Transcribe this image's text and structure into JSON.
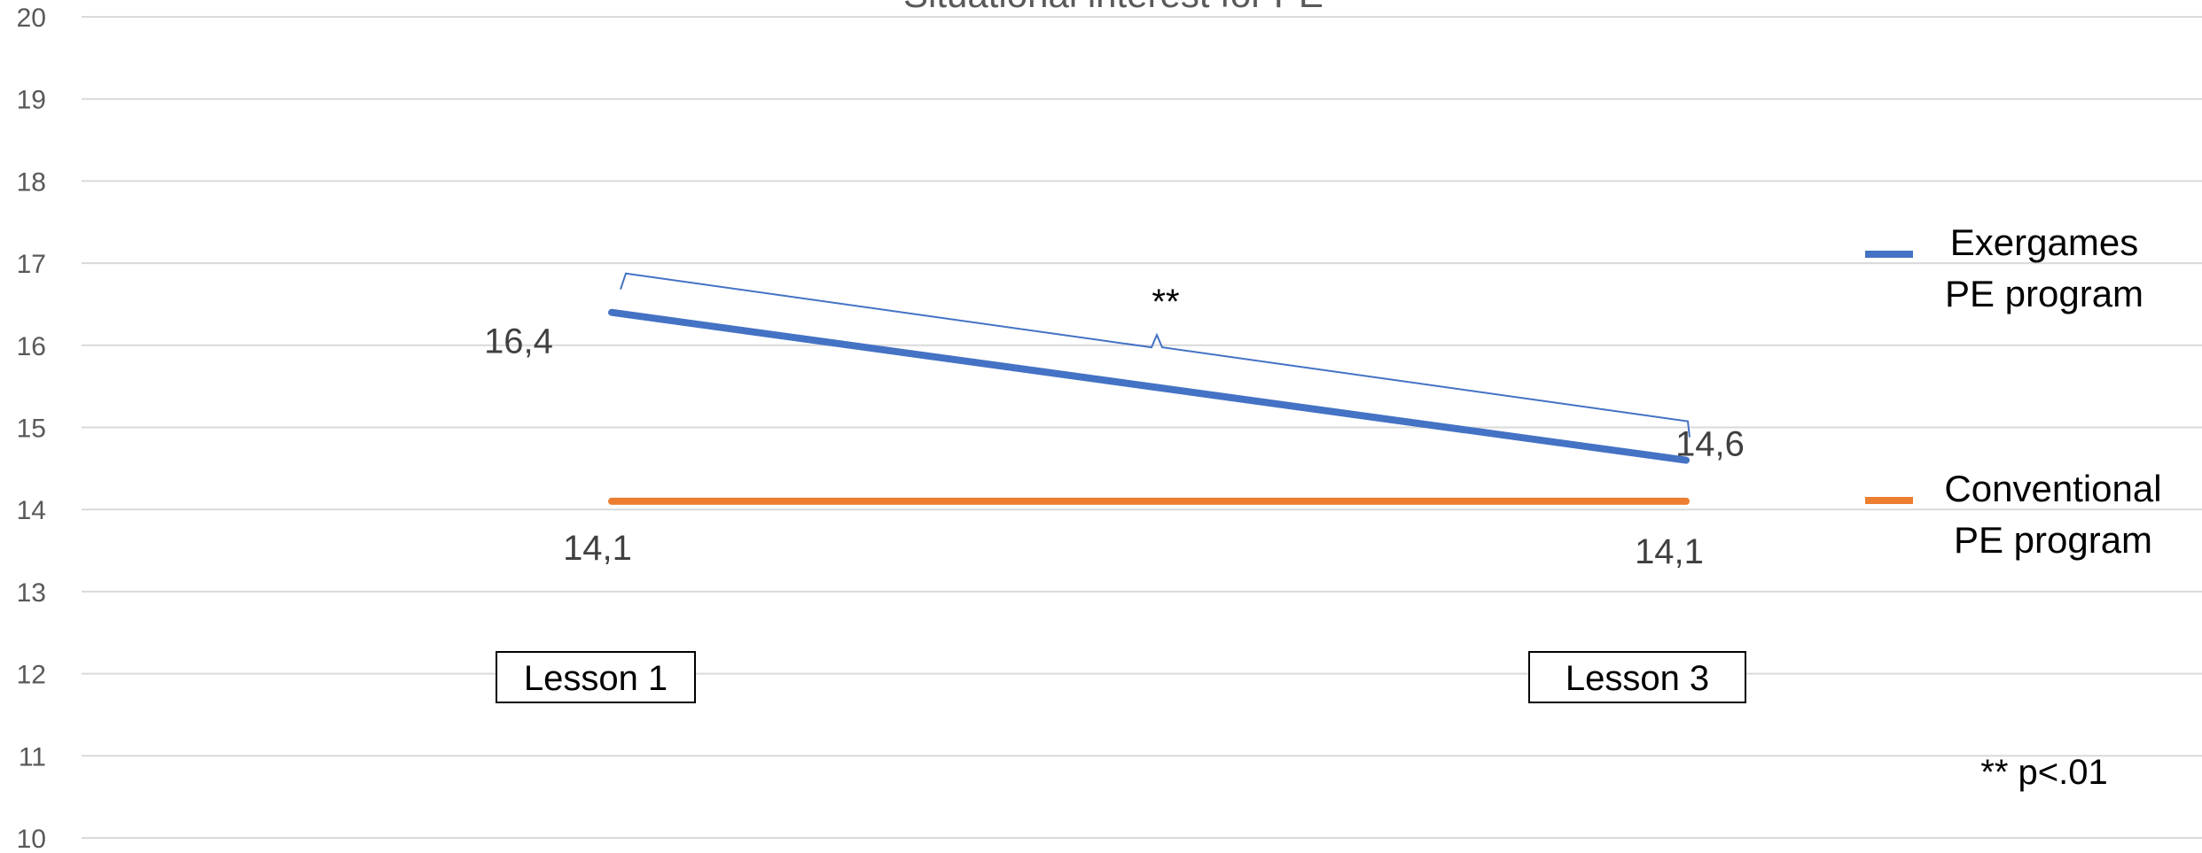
{
  "chart_data": {
    "type": "line",
    "title": "Situational interest for PE",
    "ylim": [
      10,
      20
    ],
    "yticks": [
      10,
      11,
      12,
      13,
      14,
      15,
      16,
      17,
      18,
      19,
      20
    ],
    "grid": true,
    "legend_position": "right",
    "categories": [
      "Lesson 1",
      "Lesson 3"
    ],
    "series": [
      {
        "name": "Exergames PE program",
        "name_lines": [
          "Exergames",
          "PE program"
        ],
        "color": "#4472C4",
        "values": [
          16.4,
          14.6
        ],
        "value_labels": [
          "16,4",
          "14,6"
        ]
      },
      {
        "name": "Conventional PE program",
        "name_lines": [
          "Conventional",
          "PE program"
        ],
        "color": "#ED7D31",
        "values": [
          14.1,
          14.1
        ],
        "value_labels": [
          "14,1",
          "14,1"
        ]
      }
    ],
    "annotations": {
      "significance_marker": "**",
      "significance_note": "** p<.01",
      "bracket_color": "#4472C4"
    },
    "colors": {
      "grid": "#D9D9D9",
      "tick_text": "#595959",
      "data_label_text": "#404040"
    }
  }
}
